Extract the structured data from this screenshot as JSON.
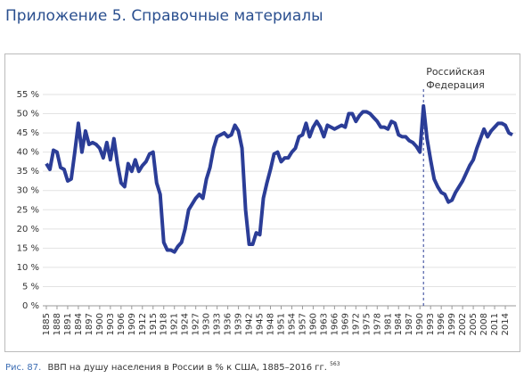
{
  "page_title": "Приложение 5. Справочные материалы",
  "caption_label": "Рис. 87.",
  "caption": "ВВП на душу населения в России в % к США, 1885–2016 гг.",
  "footnote": "563",
  "chart_data": {
    "type": "line",
    "annotation": {
      "lines": [
        "Российская",
        "Федерация"
      ],
      "x": 1991
    },
    "x": [
      1885,
      1886,
      1887,
      1888,
      1889,
      1890,
      1891,
      1892,
      1893,
      1894,
      1895,
      1896,
      1897,
      1898,
      1899,
      1900,
      1901,
      1902,
      1903,
      1904,
      1905,
      1906,
      1907,
      1908,
      1909,
      1910,
      1911,
      1912,
      1913,
      1914,
      1915,
      1916,
      1917,
      1918,
      1919,
      1920,
      1921,
      1922,
      1923,
      1924,
      1925,
      1926,
      1927,
      1928,
      1929,
      1930,
      1931,
      1932,
      1933,
      1934,
      1935,
      1936,
      1937,
      1938,
      1939,
      1940,
      1941,
      1942,
      1943,
      1944,
      1945,
      1946,
      1947,
      1948,
      1949,
      1950,
      1951,
      1952,
      1953,
      1954,
      1955,
      1956,
      1957,
      1958,
      1959,
      1960,
      1961,
      1962,
      1963,
      1964,
      1965,
      1966,
      1967,
      1968,
      1969,
      1970,
      1971,
      1972,
      1973,
      1974,
      1975,
      1976,
      1977,
      1978,
      1979,
      1980,
      1981,
      1982,
      1983,
      1984,
      1985,
      1986,
      1987,
      1988,
      1989,
      1990,
      1991,
      1992,
      1993,
      1994,
      1995,
      1996,
      1997,
      1998,
      1999,
      2000,
      2001,
      2002,
      2003,
      2004,
      2005,
      2006,
      2007,
      2008,
      2009,
      2010,
      2011,
      2012,
      2013,
      2014,
      2015,
      2016
    ],
    "series": [
      {
        "color": "#2b3d97",
        "values": [
          37,
          35.5,
          40.5,
          40,
          36,
          35.5,
          32.5,
          33,
          40,
          47.5,
          40,
          45.5,
          42,
          42.5,
          42,
          41,
          38.5,
          42.5,
          38,
          43.5,
          37,
          32,
          31,
          37,
          35,
          38,
          35,
          36.5,
          37.5,
          39.5,
          40,
          32,
          29,
          16.5,
          14.5,
          14.5,
          14,
          15.5,
          16.5,
          20,
          25,
          26.5,
          28,
          29,
          28,
          33,
          36,
          41,
          44,
          44.5,
          45,
          44,
          44.5,
          47,
          45.5,
          41,
          25,
          16,
          16,
          19,
          18.5,
          28,
          32,
          35.5,
          39.5,
          40,
          37.5,
          38.5,
          38.5,
          40,
          41,
          44,
          44.5,
          47.5,
          44,
          46.5,
          48,
          46.5,
          44,
          47,
          46.5,
          46,
          46.5,
          47,
          46.5,
          50,
          50,
          48,
          49.5,
          50.5,
          50.5,
          50,
          49,
          48,
          46.5,
          46.5,
          46,
          48,
          47.5,
          44.5,
          44,
          44,
          43,
          42.5,
          41.5,
          40,
          52,
          43.5,
          38,
          33,
          31,
          29.5,
          29,
          27,
          27.5,
          29.5,
          31,
          32.5,
          34.5,
          36.5,
          38,
          41,
          43.5,
          46,
          44,
          45.5,
          46.5,
          47.5,
          47.5,
          47,
          45,
          44.5
        ]
      }
    ],
    "xlim": [
      1884,
      2017
    ],
    "xticks": [
      1885,
      1888,
      1891,
      1894,
      1897,
      1900,
      1903,
      1906,
      1909,
      1912,
      1915,
      1918,
      1921,
      1924,
      1927,
      1930,
      1933,
      1936,
      1939,
      1942,
      1945,
      1948,
      1951,
      1954,
      1957,
      1960,
      1963,
      1966,
      1969,
      1972,
      1975,
      1978,
      1981,
      1984,
      1987,
      1990,
      1993,
      1996,
      1999,
      2002,
      2005,
      2008,
      2011,
      2014
    ],
    "ylim": [
      0,
      55
    ],
    "yticks": [
      {
        "value": 0,
        "label": "0 %"
      },
      {
        "value": 5,
        "label": "5 %"
      },
      {
        "value": 10,
        "label": "10 %"
      },
      {
        "value": 15,
        "label": "15 %"
      },
      {
        "value": 20,
        "label": "20 %"
      },
      {
        "value": 25,
        "label": "25 %"
      },
      {
        "value": 30,
        "label": "30 %"
      },
      {
        "value": 35,
        "label": "35 %"
      },
      {
        "value": 40,
        "label": "40 %"
      },
      {
        "value": 45,
        "label": "45 %"
      },
      {
        "value": 50,
        "label": "50 %"
      },
      {
        "value": 55,
        "label": "55 %"
      }
    ],
    "grid": true
  }
}
